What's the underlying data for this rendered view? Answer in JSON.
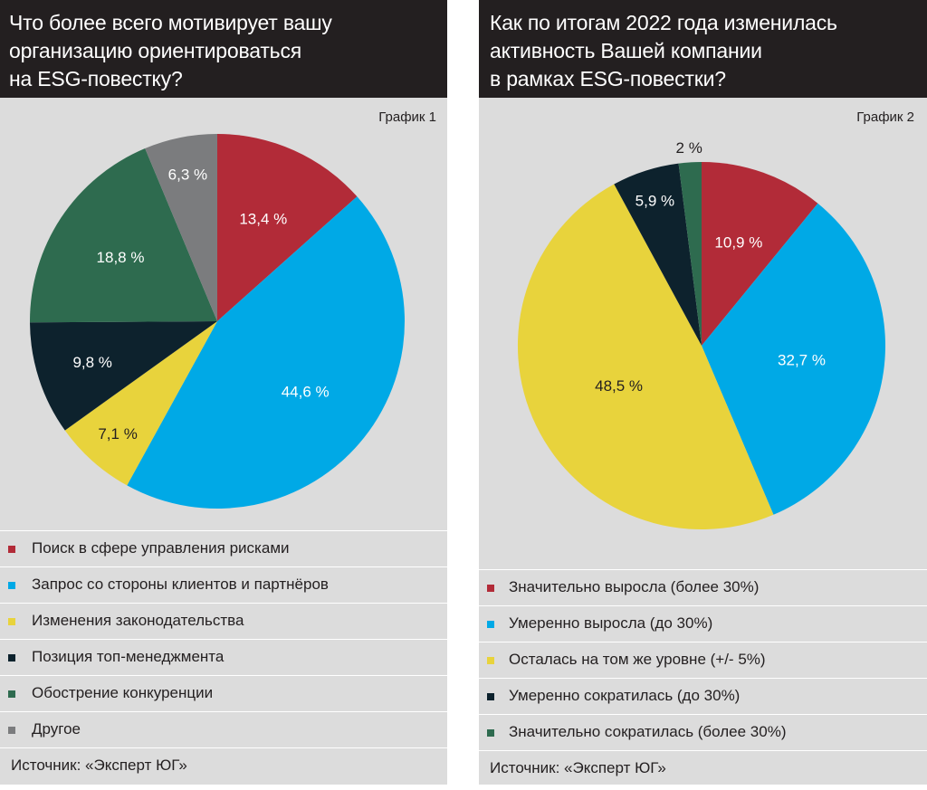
{
  "colors": {
    "red": "#b22b38",
    "blue": "#00a9e6",
    "yellow": "#e8d33c",
    "navy": "#0d222d",
    "green": "#2e6b4f",
    "gray": "#7b7c7e"
  },
  "panels": [
    {
      "header_lines": [
        "Что более всего мотивирует вашу",
        "организацию ориентироваться",
        "на ESG-повестку?"
      ],
      "chart_label": "График 1",
      "source": "Источник: «Эксперт ЮГ»"
    },
    {
      "header_lines": [
        "Как по итогам 2022 года изменилась",
        "активность Вашей компании",
        "в рамках ESG-повестки?"
      ],
      "chart_label": "График 2",
      "source": "Источник: «Эксперт ЮГ»"
    }
  ],
  "chart_data": [
    {
      "type": "pie",
      "title": "Что более всего мотивирует вашу организацию ориентироваться на ESG-повестку?",
      "categories": [
        "Поиск в сфере управления рисками",
        "Запрос со стороны клиентов и партнёров",
        "Изменения законодательства",
        "Позиция топ-менеджмента",
        "Обострение конкуренции",
        "Другое"
      ],
      "values": [
        13.4,
        44.6,
        7.1,
        9.8,
        18.8,
        6.3
      ],
      "value_labels": [
        "13,4 %",
        "44,6 %",
        "7,1 %",
        "9,8 %",
        "18,8 %",
        "6,3 %"
      ],
      "colors": [
        "#b22b38",
        "#00a9e6",
        "#e8d33c",
        "#0d222d",
        "#2e6b4f",
        "#7b7c7e"
      ],
      "label_colors": [
        "#ffffff",
        "#ffffff",
        "#231f20",
        "#ffffff",
        "#ffffff",
        "#ffffff"
      ],
      "start": "12 o'clock",
      "direction": "clockwise",
      "legend_placement": "bottom"
    },
    {
      "type": "pie",
      "title": "Как по итогам 2022 года изменилась активность Вашей компании в рамках ESG-повестки?",
      "categories": [
        "Значительно выросла (более 30%)",
        "Умеренно выросла (до 30%)",
        "Осталась на том же уровне (+/- 5%)",
        "Умеренно сократилась (до 30%)",
        "Значительно сократилась (более 30%)"
      ],
      "values": [
        10.9,
        32.7,
        48.5,
        5.9,
        2
      ],
      "value_labels": [
        "10,9 %",
        "32,7 %",
        "48,5 %",
        "5,9 %",
        "2 %"
      ],
      "colors": [
        "#b22b38",
        "#00a9e6",
        "#e8d33c",
        "#0d222d",
        "#2e6b4f"
      ],
      "label_colors": [
        "#ffffff",
        "#ffffff",
        "#231f20",
        "#ffffff",
        "#231f20"
      ],
      "start": "12 o'clock",
      "direction": "clockwise",
      "legend_placement": "bottom"
    }
  ]
}
